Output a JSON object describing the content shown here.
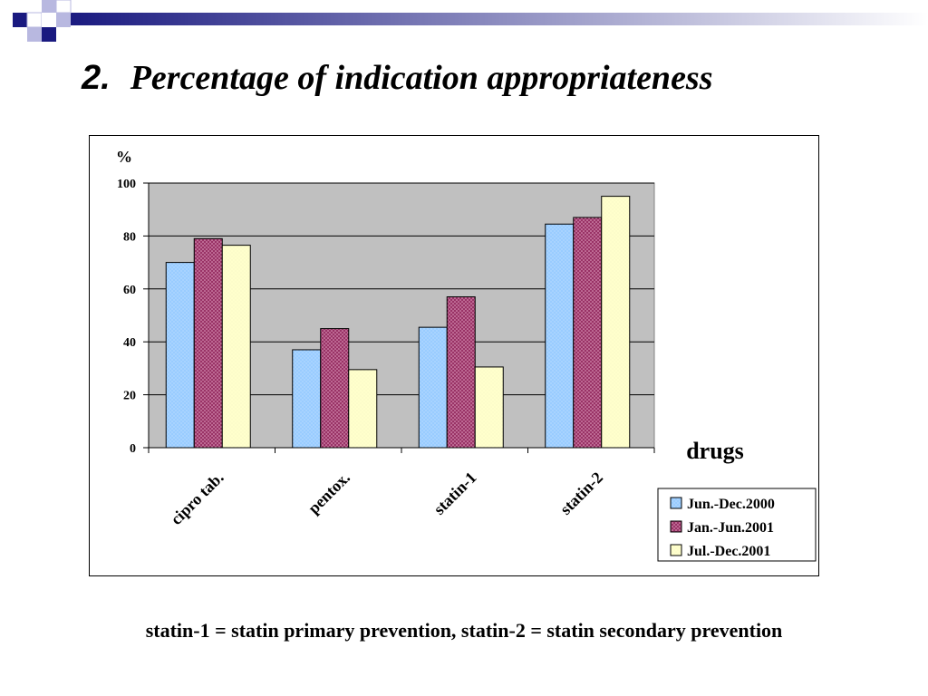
{
  "slide": {
    "title_number": "2.",
    "title_text": "Percentage of indication appropriateness",
    "footnote": "statin-1 = statin primary prevention, statin-2 = statin secondary prevention"
  },
  "colors": {
    "plot_bg": "#c0c0c0",
    "deco_dark": "#1a1a80",
    "deco_light": "#b8b8e0"
  },
  "chart_data": {
    "type": "bar",
    "ylabel": "%",
    "xlabel": "drugs",
    "ylim": [
      0,
      100
    ],
    "yticks": [
      "0",
      "20",
      "40",
      "60",
      "80",
      "100"
    ],
    "grid": true,
    "legend_position": "bottom-right",
    "categories": [
      "cipro tab.",
      "pentox.",
      "statin-1",
      "statin-2"
    ],
    "series": [
      {
        "name": "Jun.-Dec.2000",
        "color": "#99ccff",
        "values": [
          70,
          37,
          45.5,
          84.5
        ]
      },
      {
        "name": "Jan.-Jun.2001",
        "color": "#993366",
        "values": [
          79,
          45,
          57,
          87
        ]
      },
      {
        "name": "Jul.-Dec.2001",
        "color": "#ffffcc",
        "values": [
          76.5,
          29.5,
          30.5,
          95
        ]
      }
    ]
  }
}
